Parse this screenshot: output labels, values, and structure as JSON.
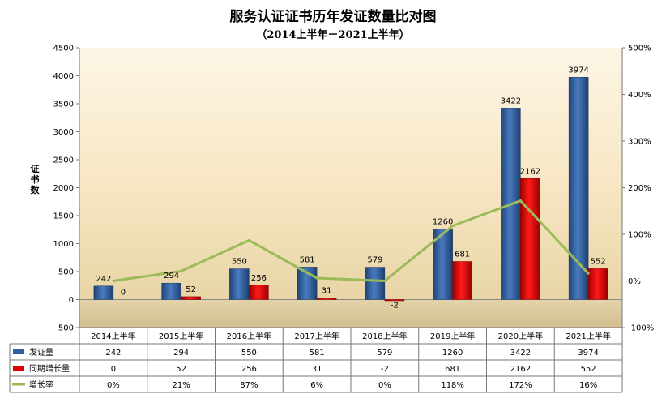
{
  "chart_data": {
    "type": "bar",
    "title": "服务认证证书历年发证数量比对图",
    "subtitle": "（2014上半年－2021上半年）",
    "ylabel": "证书数",
    "categories": [
      "2014上半年",
      "2015上半年",
      "2016上半年",
      "2017上半年",
      "2018上半年",
      "2019上半年",
      "2020上半年",
      "2021上半年"
    ],
    "series": [
      {
        "name": "发证量",
        "type": "bar",
        "axis": "left",
        "color": "#2f5f9e",
        "values": [
          242,
          294,
          550,
          581,
          579,
          1260,
          3422,
          3974
        ],
        "labels": [
          "242",
          "294",
          "550",
          "581",
          "579",
          "1260",
          "3422",
          "3974"
        ]
      },
      {
        "name": "同期增长量",
        "type": "bar",
        "axis": "left",
        "color": "#e00000",
        "values": [
          0,
          52,
          256,
          31,
          -2,
          681,
          2162,
          552
        ],
        "labels": [
          "0",
          "52",
          "256",
          "31",
          "-2",
          "681",
          "2162",
          "552"
        ]
      },
      {
        "name": "增长率",
        "type": "line",
        "axis": "right",
        "color": "#9bbb59",
        "values": [
          0,
          21,
          87,
          6,
          0,
          118,
          172,
          16
        ],
        "labels": [
          "0%",
          "21%",
          "87%",
          "6%",
          "0%",
          "118%",
          "172%",
          "16%"
        ]
      }
    ],
    "left_axis": {
      "ylim": [
        -500,
        4500
      ],
      "ticks": [
        "-500",
        "0",
        "500",
        "1000",
        "1500",
        "2000",
        "2500",
        "3000",
        "3500",
        "4000",
        "4500"
      ]
    },
    "right_axis": {
      "ylim": [
        -100,
        500
      ],
      "ticks": [
        "-100%",
        "0%",
        "100%",
        "200%",
        "300%",
        "400%",
        "500%"
      ]
    },
    "legend": "data-table",
    "grid": false
  }
}
